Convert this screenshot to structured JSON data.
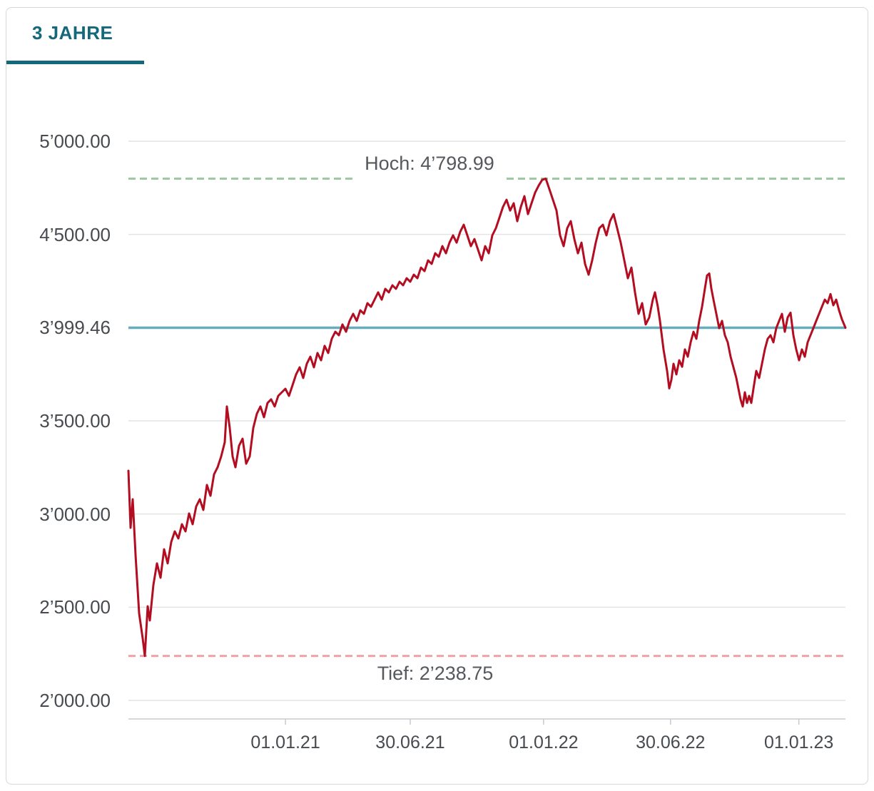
{
  "tab": {
    "label": "3 JAHRE"
  },
  "theme": {
    "accent": "#14687b",
    "label_color": "#474b4f"
  },
  "chart_data": {
    "type": "line",
    "title": "",
    "xlabel": "",
    "ylabel": "",
    "grid": "horizontal",
    "legend": false,
    "series_color": "#b30d22",
    "ylim": [
      2000,
      5000
    ],
    "grid_values": [
      5000,
      4500,
      4000,
      3500,
      3000,
      2500,
      2000
    ],
    "y_ticks": [
      {
        "label": "5’000.00",
        "value": 5000
      },
      {
        "label": "4’500.00",
        "value": 4500
      },
      {
        "label": "3’999.46",
        "value": 3999.46
      },
      {
        "label": "3’500.00",
        "value": 3500
      },
      {
        "label": "3’000.00",
        "value": 3000
      },
      {
        "label": "2’500.00",
        "value": 2500
      },
      {
        "label": "2’000.00",
        "value": 2000
      }
    ],
    "x_ticks": [
      {
        "label": "01.01.21",
        "t": 0.219
      },
      {
        "label": "30.06.21",
        "t": 0.393
      },
      {
        "label": "01.01.22",
        "t": 0.579
      },
      {
        "label": "30.06.22",
        "t": 0.756
      },
      {
        "label": "01.01.23",
        "t": 0.935
      }
    ],
    "reference_lines": {
      "high": {
        "label": "Hoch: 4’798.99",
        "value": 4798.99,
        "color": "#9cc9a5",
        "style": "dashed"
      },
      "low": {
        "label": "Tief: 2’238.75",
        "value": 2238.75,
        "color": "#f1a2a7",
        "style": "dashed"
      },
      "current": {
        "value": 3999.46,
        "color": "#66adb9",
        "style": "solid"
      }
    },
    "points": [
      [
        0.0,
        3232
      ],
      [
        0.003,
        2926
      ],
      [
        0.006,
        3079
      ],
      [
        0.01,
        2773
      ],
      [
        0.0149,
        2467
      ],
      [
        0.0199,
        2333
      ],
      [
        0.0229,
        2238.75
      ],
      [
        0.0269,
        2505
      ],
      [
        0.0299,
        2429
      ],
      [
        0.0348,
        2620
      ],
      [
        0.0398,
        2735
      ],
      [
        0.0448,
        2658
      ],
      [
        0.0498,
        2811
      ],
      [
        0.0547,
        2735
      ],
      [
        0.0597,
        2850
      ],
      [
        0.0647,
        2907
      ],
      [
        0.0697,
        2869
      ],
      [
        0.0746,
        2945
      ],
      [
        0.0796,
        2907
      ],
      [
        0.0846,
        3003
      ],
      [
        0.0896,
        2945
      ],
      [
        0.0945,
        3041
      ],
      [
        0.0995,
        3079
      ],
      [
        0.1045,
        3022
      ],
      [
        0.1095,
        3156
      ],
      [
        0.1144,
        3098
      ],
      [
        0.1194,
        3213
      ],
      [
        0.1244,
        3251
      ],
      [
        0.1294,
        3309
      ],
      [
        0.1343,
        3385
      ],
      [
        0.1373,
        3577
      ],
      [
        0.1413,
        3462
      ],
      [
        0.1453,
        3309
      ],
      [
        0.1493,
        3251
      ],
      [
        0.1542,
        3366
      ],
      [
        0.1592,
        3404
      ],
      [
        0.1642,
        3270
      ],
      [
        0.1692,
        3309
      ],
      [
        0.1741,
        3462
      ],
      [
        0.1791,
        3538
      ],
      [
        0.1841,
        3577
      ],
      [
        0.1891,
        3519
      ],
      [
        0.194,
        3596
      ],
      [
        0.199,
        3615
      ],
      [
        0.204,
        3577
      ],
      [
        0.209,
        3634
      ],
      [
        0.2139,
        3653
      ],
      [
        0.2189,
        3672
      ],
      [
        0.2239,
        3634
      ],
      [
        0.2289,
        3691
      ],
      [
        0.2338,
        3749
      ],
      [
        0.2388,
        3787
      ],
      [
        0.2438,
        3730
      ],
      [
        0.2488,
        3806
      ],
      [
        0.2537,
        3844
      ],
      [
        0.2587,
        3787
      ],
      [
        0.2637,
        3864
      ],
      [
        0.2687,
        3825
      ],
      [
        0.2736,
        3902
      ],
      [
        0.2786,
        3864
      ],
      [
        0.2836,
        3940
      ],
      [
        0.2886,
        3978
      ],
      [
        0.2935,
        3959
      ],
      [
        0.2985,
        4017
      ],
      [
        0.3035,
        3978
      ],
      [
        0.3085,
        4036
      ],
      [
        0.3134,
        4074
      ],
      [
        0.3184,
        4036
      ],
      [
        0.3234,
        4093
      ],
      [
        0.3284,
        4074
      ],
      [
        0.3333,
        4131
      ],
      [
        0.3383,
        4112
      ],
      [
        0.3433,
        4150
      ],
      [
        0.3483,
        4189
      ],
      [
        0.3532,
        4150
      ],
      [
        0.3582,
        4208
      ],
      [
        0.3632,
        4189
      ],
      [
        0.3682,
        4227
      ],
      [
        0.3731,
        4208
      ],
      [
        0.3781,
        4246
      ],
      [
        0.3831,
        4227
      ],
      [
        0.3881,
        4265
      ],
      [
        0.393,
        4246
      ],
      [
        0.398,
        4284
      ],
      [
        0.403,
        4265
      ],
      [
        0.408,
        4322
      ],
      [
        0.4129,
        4303
      ],
      [
        0.4179,
        4361
      ],
      [
        0.4229,
        4342
      ],
      [
        0.4279,
        4399
      ],
      [
        0.4328,
        4380
      ],
      [
        0.4378,
        4437
      ],
      [
        0.4428,
        4399
      ],
      [
        0.4478,
        4456
      ],
      [
        0.4527,
        4495
      ],
      [
        0.4577,
        4456
      ],
      [
        0.4627,
        4514
      ],
      [
        0.4677,
        4552
      ],
      [
        0.4726,
        4495
      ],
      [
        0.4776,
        4437
      ],
      [
        0.4826,
        4475
      ],
      [
        0.4876,
        4418
      ],
      [
        0.4925,
        4361
      ],
      [
        0.4975,
        4437
      ],
      [
        0.5025,
        4399
      ],
      [
        0.5075,
        4495
      ],
      [
        0.5124,
        4533
      ],
      [
        0.5174,
        4590
      ],
      [
        0.5224,
        4648
      ],
      [
        0.5274,
        4686
      ],
      [
        0.5323,
        4628
      ],
      [
        0.5373,
        4667
      ],
      [
        0.5423,
        4571
      ],
      [
        0.5473,
        4648
      ],
      [
        0.5522,
        4705
      ],
      [
        0.5572,
        4609
      ],
      [
        0.5622,
        4667
      ],
      [
        0.5672,
        4724
      ],
      [
        0.5721,
        4762
      ],
      [
        0.5771,
        4793
      ],
      [
        0.5821,
        4798.99
      ],
      [
        0.5871,
        4743
      ],
      [
        0.592,
        4686
      ],
      [
        0.597,
        4628
      ],
      [
        0.602,
        4495
      ],
      [
        0.607,
        4437
      ],
      [
        0.6119,
        4533
      ],
      [
        0.6169,
        4571
      ],
      [
        0.6219,
        4475
      ],
      [
        0.6269,
        4399
      ],
      [
        0.6318,
        4456
      ],
      [
        0.6368,
        4342
      ],
      [
        0.6418,
        4284
      ],
      [
        0.6468,
        4361
      ],
      [
        0.6517,
        4456
      ],
      [
        0.6567,
        4533
      ],
      [
        0.6617,
        4552
      ],
      [
        0.6667,
        4495
      ],
      [
        0.6716,
        4571
      ],
      [
        0.6766,
        4609
      ],
      [
        0.6816,
        4533
      ],
      [
        0.6866,
        4456
      ],
      [
        0.6915,
        4361
      ],
      [
        0.6965,
        4265
      ],
      [
        0.7015,
        4322
      ],
      [
        0.7065,
        4189
      ],
      [
        0.7114,
        4074
      ],
      [
        0.7164,
        4131
      ],
      [
        0.7214,
        4017
      ],
      [
        0.7264,
        4055
      ],
      [
        0.7313,
        4150
      ],
      [
        0.7343,
        4189
      ],
      [
        0.7383,
        4112
      ],
      [
        0.7413,
        4036
      ],
      [
        0.7463,
        3883
      ],
      [
        0.7512,
        3768
      ],
      [
        0.7542,
        3674
      ],
      [
        0.7572,
        3720
      ],
      [
        0.7602,
        3806
      ],
      [
        0.7642,
        3749
      ],
      [
        0.7682,
        3825
      ],
      [
        0.7721,
        3790
      ],
      [
        0.7761,
        3883
      ],
      [
        0.7801,
        3844
      ],
      [
        0.7841,
        3921
      ],
      [
        0.7881,
        3978
      ],
      [
        0.792,
        3940
      ],
      [
        0.796,
        4036
      ],
      [
        0.8,
        4112
      ],
      [
        0.804,
        4210
      ],
      [
        0.807,
        4280
      ],
      [
        0.81,
        4290
      ],
      [
        0.8129,
        4210
      ],
      [
        0.8159,
        4150
      ],
      [
        0.8199,
        4074
      ],
      [
        0.8239,
        3997
      ],
      [
        0.8279,
        4036
      ],
      [
        0.8318,
        3959
      ],
      [
        0.8358,
        3921
      ],
      [
        0.8398,
        3844
      ],
      [
        0.8438,
        3787
      ],
      [
        0.8478,
        3730
      ],
      [
        0.8507,
        3672
      ],
      [
        0.8537,
        3615
      ],
      [
        0.8567,
        3577
      ],
      [
        0.8597,
        3653
      ],
      [
        0.8627,
        3596
      ],
      [
        0.8657,
        3634
      ],
      [
        0.8687,
        3596
      ],
      [
        0.8716,
        3672
      ],
      [
        0.8756,
        3768
      ],
      [
        0.8796,
        3730
      ],
      [
        0.8836,
        3806
      ],
      [
        0.8876,
        3883
      ],
      [
        0.8915,
        3940
      ],
      [
        0.8955,
        3959
      ],
      [
        0.8995,
        3921
      ],
      [
        0.9035,
        3997
      ],
      [
        0.9075,
        4036
      ],
      [
        0.9114,
        4074
      ],
      [
        0.9154,
        3978
      ],
      [
        0.9194,
        4055
      ],
      [
        0.9234,
        4080
      ],
      [
        0.9274,
        3959
      ],
      [
        0.9313,
        3883
      ],
      [
        0.9353,
        3825
      ],
      [
        0.9393,
        3883
      ],
      [
        0.9433,
        3844
      ],
      [
        0.9473,
        3921
      ],
      [
        0.9512,
        3959
      ],
      [
        0.9552,
        3997
      ],
      [
        0.9592,
        4036
      ],
      [
        0.9632,
        4074
      ],
      [
        0.9672,
        4112
      ],
      [
        0.9712,
        4150
      ],
      [
        0.9751,
        4131
      ],
      [
        0.9791,
        4180
      ],
      [
        0.9831,
        4120
      ],
      [
        0.9871,
        4150
      ],
      [
        0.991,
        4093
      ],
      [
        0.995,
        4045
      ],
      [
        1.0,
        3999.46
      ]
    ]
  }
}
